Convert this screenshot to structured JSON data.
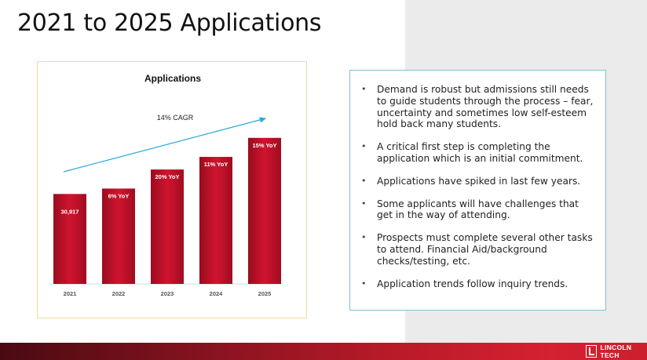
{
  "slide": {
    "title": "2021 to 2025 Applications"
  },
  "chart_data": {
    "type": "bar",
    "title": "Applications",
    "categories": [
      "2021",
      "2022",
      "2023",
      "2024",
      "2025"
    ],
    "values": [
      30917,
      32773,
      39327,
      43660,
      50200
    ],
    "bar_labels": [
      "30,917",
      "6% YoY",
      "20% YoY",
      "11% YoY",
      "15% YoY"
    ],
    "annotation": "14% CAGR",
    "ylim": [
      0,
      62000
    ],
    "grid": false,
    "bar_color": "#c8102e"
  },
  "bullets": [
    "Demand is robust but admissions still needs to guide students through the process – fear, uncertainty and sometimes low self-esteem hold back many students.",
    "A critical first step is completing the application which is an initial commitment.",
    "Applications have spiked in last few years.",
    "Some applicants will have challenges that get in the way of attending.",
    "Prospects must complete several other tasks to attend. Financial Aid/background checks/testing, etc.",
    "Application trends follow inquiry trends."
  ],
  "bullet_symbol": "•",
  "footer": {
    "logo_text": "LINCOLN TECH"
  },
  "colors": {
    "arrow": "#29a8df",
    "panel_bg": "#ebebeb",
    "panel_border": "#7ec3d4",
    "chart_border": "#f0dc9a"
  }
}
